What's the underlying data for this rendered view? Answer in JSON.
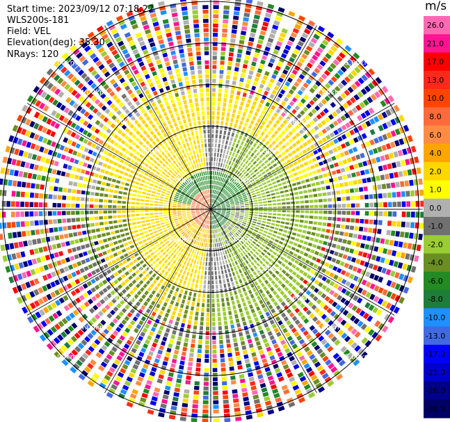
{
  "info": {
    "start_time": "Start time: 2023/09/12 07:18:22",
    "instrument": "WLS200s-181",
    "field": "Field: VEL",
    "elevation": "Elevation(deg): 35.30",
    "nrays": "NRays: 120"
  },
  "chart_data": {
    "type": "heatmap",
    "projection": "polar (PPI scan)",
    "nrays": 120,
    "ring_labels": [
      "1.00km",
      "2.00km",
      "3.00km",
      "4.00km",
      "5.00km"
    ],
    "ring_km": [
      1,
      2,
      3,
      4,
      5
    ],
    "max_range_km": 5.1,
    "colorbar": {
      "unit": "m/s",
      "tick_labels": [
        "26.0",
        "21.0",
        "17.0",
        "13.0",
        "10.0",
        "8.0",
        "6.0",
        "4.0",
        "2.0",
        "1.0",
        "0.0",
        "-1.0",
        "-2.0",
        "-4.0",
        "-6.0",
        "-8.0",
        "-10.0",
        "-13.0",
        "-17.0",
        "-21.0",
        "-26.0",
        "-30.0"
      ],
      "colors": [
        "#ff69b4",
        "#ff1493",
        "#ff0000",
        "#ff2a1a",
        "#ff4500",
        "#ff6a3c",
        "#ff8c42",
        "#ffa500",
        "#ffd700",
        "#ffff00",
        "#b0b0b0",
        "#707070",
        "#9acd32",
        "#6b8e23",
        "#228b22",
        "#1e7d3a",
        "#1e90ff",
        "#4169e1",
        "#0000ff",
        "#0000cd",
        "#00008b",
        "#000066"
      ]
    }
  }
}
